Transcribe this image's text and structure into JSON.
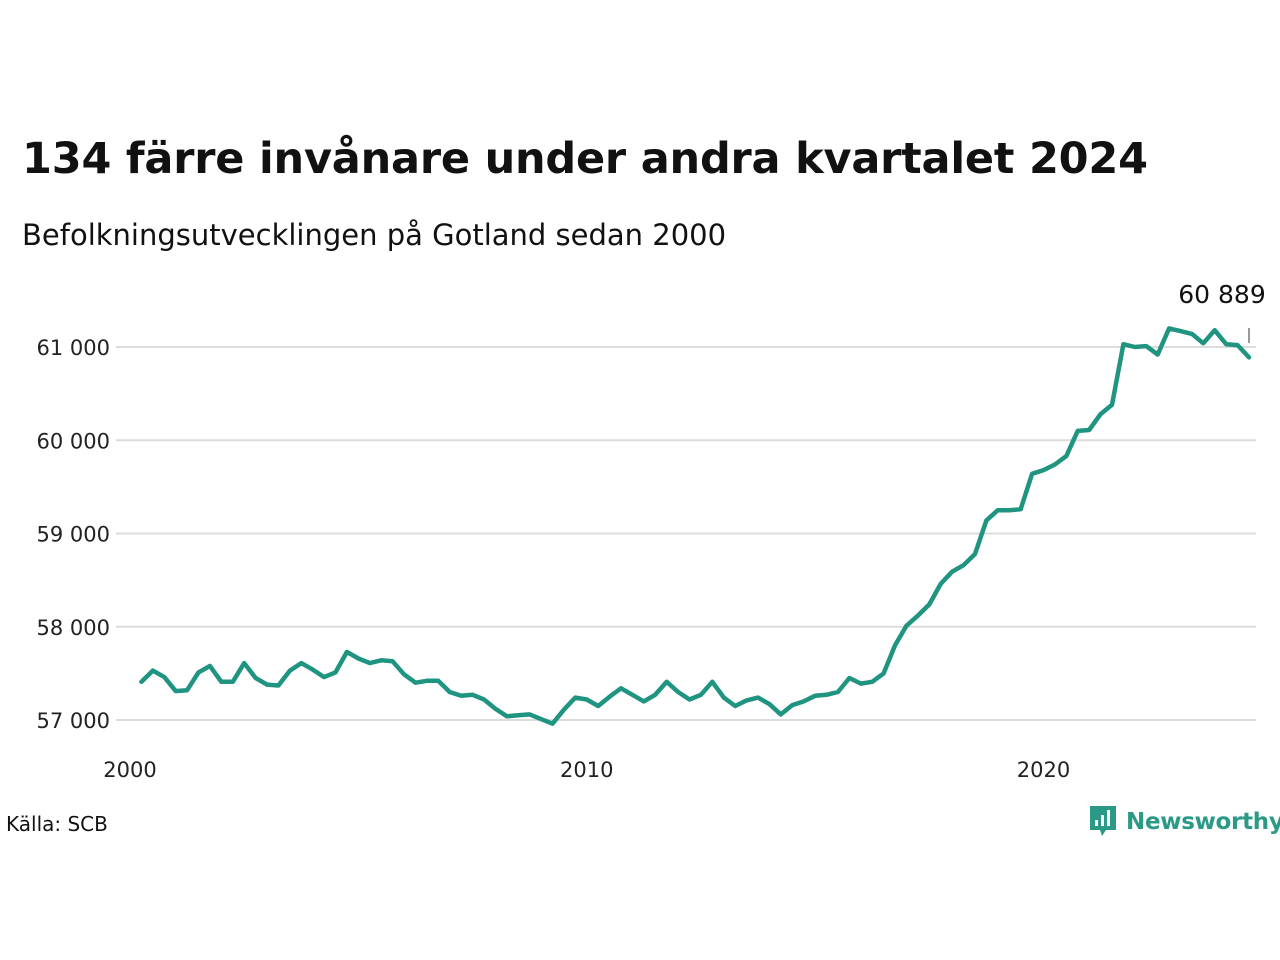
{
  "title": "134 färre invånare under andra kvartalet 2024",
  "subtitle": "Befolkningsutvecklingen på Gotland sedan 2000",
  "source": "Källa: SCB",
  "brand": {
    "name": "Newsworthy",
    "icon": "newsworthy-logo-icon",
    "color": "#2a9a86"
  },
  "chart_data": {
    "type": "line",
    "title": "134 färre invånare under andra kvartalet 2024",
    "subtitle": "Befolkningsutvecklingen på Gotland sedan 2000",
    "xlabel": "",
    "ylabel": "",
    "xlim": [
      2000,
      2025
    ],
    "ylim": [
      57000,
      61300
    ],
    "y_ticks": [
      57000,
      58000,
      59000,
      60000,
      61000
    ],
    "y_tick_labels": [
      "57 000",
      "58 000",
      "59 000",
      "60 000",
      "61 000"
    ],
    "x_ticks": [
      2000,
      2010,
      2020
    ],
    "x_tick_labels": [
      "2000",
      "2010",
      "2020"
    ],
    "grid": "horizontal",
    "legend": "none",
    "line_color": "#1f9480",
    "last_label": "60 889",
    "series": [
      {
        "x": [
          2000.25,
          2000.5,
          2000.75,
          2001.0,
          2001.25,
          2001.5,
          2001.75,
          2002.0,
          2002.25,
          2002.5,
          2002.75,
          2003.0,
          2003.25,
          2003.5,
          2003.75,
          2004.0,
          2004.25,
          2004.5,
          2004.75,
          2005.0,
          2005.25,
          2005.5,
          2005.75,
          2006.0,
          2006.25,
          2006.5,
          2006.75,
          2007.0,
          2007.25,
          2007.5,
          2007.75,
          2008.0,
          2008.25,
          2008.5,
          2008.75,
          2009.0,
          2009.25,
          2009.5,
          2009.75,
          2010.0,
          2010.25,
          2010.5,
          2010.75,
          2011.0,
          2011.25,
          2011.5,
          2011.75,
          2012.0,
          2012.25,
          2012.5,
          2012.75,
          2013.0,
          2013.25,
          2013.5,
          2013.75,
          2014.0,
          2014.25,
          2014.5,
          2014.75,
          2015.0,
          2015.25,
          2015.5,
          2015.75,
          2016.0,
          2016.25,
          2016.5,
          2016.75,
          2017.0,
          2017.25,
          2017.5,
          2017.75,
          2018.0,
          2018.25,
          2018.5,
          2018.75,
          2019.0,
          2019.25,
          2019.5,
          2019.75,
          2020.0,
          2020.25,
          2020.5,
          2020.75,
          2021.0,
          2021.25,
          2021.5,
          2021.75,
          2022.0,
          2022.25,
          2022.5,
          2022.75,
          2023.0,
          2023.25,
          2023.5,
          2023.75,
          2024.0,
          2024.25,
          2024.5
        ],
        "values": [
          57410,
          57530,
          57460,
          57310,
          57320,
          57510,
          57580,
          57410,
          57410,
          57610,
          57450,
          57380,
          57370,
          57530,
          57610,
          57540,
          57460,
          57510,
          57730,
          57660,
          57610,
          57640,
          57630,
          57490,
          57400,
          57420,
          57420,
          57300,
          57260,
          57270,
          57220,
          57120,
          57040,
          57050,
          57060,
          57010,
          56960,
          57110,
          57240,
          57220,
          57150,
          57250,
          57340,
          57270,
          57200,
          57270,
          57410,
          57300,
          57220,
          57270,
          57410,
          57240,
          57150,
          57210,
          57240,
          57170,
          57060,
          57160,
          57200,
          57260,
          57270,
          57300,
          57450,
          57390,
          57410,
          57500,
          57800,
          58010,
          58120,
          58240,
          58460,
          58590,
          58660,
          58780,
          59140,
          59250,
          59250,
          59260,
          59640,
          59680,
          59740,
          59830,
          60100,
          60110,
          60280,
          60380,
          61030,
          61000,
          61010,
          60920,
          61200,
          61170,
          61140,
          61040,
          61180,
          61030,
          61020,
          60889
        ]
      }
    ]
  }
}
